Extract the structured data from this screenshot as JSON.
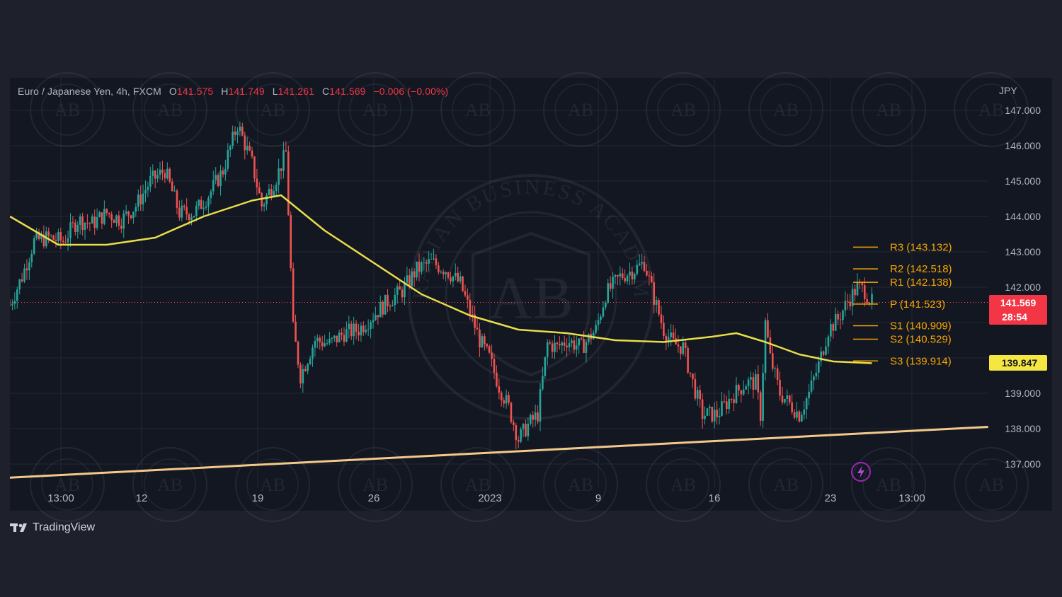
{
  "legend": {
    "symbol": "Euro / Japanese Yen, 4h, FXCM",
    "open_key": "O",
    "open": "141.575",
    "high_key": "H",
    "high": "141.749",
    "low_key": "L",
    "low": "141.261",
    "close_key": "C",
    "close": "141.569",
    "change": "−0.006 (−0.00%)"
  },
  "currency": "JPY",
  "branding": {
    "logo_text": "TradingView",
    "watermark": "ARABIAN BUSINESS ACADEMY",
    "watermark_mono": "AB"
  },
  "price_tags": {
    "last_price": "141.569",
    "countdown": "28:54",
    "ma_value": "139.847",
    "last_color": "#f23645",
    "ma_color": "#f5e642"
  },
  "colors": {
    "up": "#26a69a",
    "down": "#ef5350",
    "ma": "#e8dd4a",
    "trendline": "#f3c98b",
    "pivot": "#f7a600",
    "grid": "#232734"
  },
  "chart_data": {
    "type": "candlestick",
    "y_axis": {
      "min": 136.2,
      "max": 147.5,
      "ticks": [
        "137.000",
        "138.000",
        "139.000",
        "142.000",
        "143.000",
        "144.000",
        "145.000",
        "146.000",
        "147.000"
      ]
    },
    "x_ticks": [
      "13:00",
      "12",
      "19",
      "26",
      "2023",
      "9",
      "16",
      "23",
      "13:00"
    ],
    "pivots": [
      {
        "label": "R3 (143.132)",
        "value": 143.132
      },
      {
        "label": "R2 (142.518)",
        "value": 142.518
      },
      {
        "label": "R1 (142.138)",
        "value": 142.138
      },
      {
        "label": "P (141.523)",
        "value": 141.523
      },
      {
        "label": "S1 (140.909)",
        "value": 140.909
      },
      {
        "label": "S2 (140.529)",
        "value": 140.529
      },
      {
        "label": "S3 (139.914)",
        "value": 139.914
      }
    ],
    "close_path": [
      [
        0,
        141.5
      ],
      [
        5,
        142.3
      ],
      [
        10,
        143.3
      ],
      [
        16,
        143.4
      ],
      [
        22,
        143.3
      ],
      [
        28,
        143.9
      ],
      [
        34,
        143.8
      ],
      [
        40,
        144.1
      ],
      [
        46,
        143.9
      ],
      [
        52,
        144.3
      ],
      [
        58,
        145.0
      ],
      [
        64,
        145.3
      ],
      [
        70,
        144.1
      ],
      [
        76,
        144.1
      ],
      [
        82,
        144.6
      ],
      [
        88,
        145.3
      ],
      [
        94,
        146.6
      ],
      [
        100,
        145.5
      ],
      [
        104,
        144.3
      ],
      [
        110,
        145.1
      ],
      [
        114,
        145.8
      ],
      [
        117,
        140.8
      ],
      [
        120,
        139.5
      ],
      [
        126,
        140.5
      ],
      [
        132,
        140.4
      ],
      [
        138,
        140.7
      ],
      [
        144,
        140.8
      ],
      [
        150,
        141.2
      ],
      [
        156,
        141.6
      ],
      [
        162,
        141.9
      ],
      [
        168,
        142.5
      ],
      [
        174,
        142.7
      ],
      [
        180,
        142.5
      ],
      [
        186,
        142.1
      ],
      [
        190,
        141.3
      ],
      [
        194,
        140.5
      ],
      [
        198,
        140.0
      ],
      [
        202,
        139.2
      ],
      [
        206,
        138.6
      ],
      [
        210,
        137.7
      ],
      [
        214,
        138.1
      ],
      [
        218,
        138.4
      ],
      [
        222,
        140.4
      ],
      [
        226,
        140.3
      ],
      [
        230,
        140.5
      ],
      [
        236,
        140.3
      ],
      [
        242,
        140.8
      ],
      [
        246,
        141.8
      ],
      [
        252,
        142.3
      ],
      [
        258,
        142.5
      ],
      [
        262,
        142.7
      ],
      [
        266,
        141.7
      ],
      [
        270,
        140.8
      ],
      [
        274,
        140.4
      ],
      [
        278,
        140.3
      ],
      [
        282,
        139.3
      ],
      [
        286,
        138.4
      ],
      [
        292,
        138.4
      ],
      [
        298,
        138.9
      ],
      [
        304,
        139.3
      ],
      [
        308,
        139.3
      ],
      [
        310,
        138.4
      ],
      [
        312,
        141.0
      ],
      [
        314,
        140.0
      ],
      [
        318,
        139.0
      ],
      [
        322,
        138.7
      ],
      [
        326,
        138.4
      ],
      [
        330,
        139.0
      ],
      [
        334,
        139.8
      ],
      [
        338,
        140.8
      ],
      [
        342,
        141.1
      ],
      [
        346,
        141.6
      ],
      [
        350,
        142.0
      ],
      [
        353,
        141.9
      ],
      [
        356,
        141.57
      ]
    ],
    "moving_average": [
      [
        0,
        144.0
      ],
      [
        20,
        143.2
      ],
      [
        40,
        143.2
      ],
      [
        60,
        143.4
      ],
      [
        80,
        144.0
      ],
      [
        100,
        144.45
      ],
      [
        112,
        144.6
      ],
      [
        130,
        143.6
      ],
      [
        150,
        142.7
      ],
      [
        170,
        141.8
      ],
      [
        190,
        141.2
      ],
      [
        210,
        140.8
      ],
      [
        230,
        140.7
      ],
      [
        250,
        140.5
      ],
      [
        270,
        140.45
      ],
      [
        290,
        140.6
      ],
      [
        300,
        140.7
      ],
      [
        312,
        140.45
      ],
      [
        326,
        140.1
      ],
      [
        340,
        139.9
      ],
      [
        356,
        139.85
      ]
    ],
    "trendline": [
      [
        -4,
        136.6
      ],
      [
        404,
        138.05
      ]
    ],
    "x_domain": [
      0,
      404
    ]
  }
}
